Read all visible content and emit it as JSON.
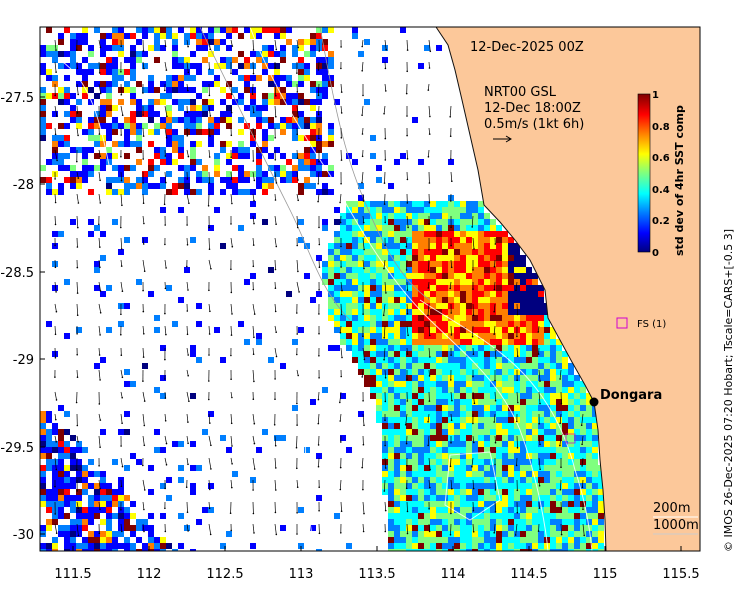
{
  "map": {
    "title": "12-Dec-2025 00Z",
    "product": "NRT00 GSL",
    "vector_time": "12-Dec 18:00Z",
    "vector_scale": "0.5m/s (1kt 6h)",
    "lon_ticks": [
      "111.5",
      "112",
      "112.5",
      "113",
      "113.5",
      "114",
      "114.5",
      "115",
      "115.5"
    ],
    "lat_ticks": [
      "-27.5",
      "-28",
      "-28.5",
      "-29",
      "-29.5",
      "-30"
    ],
    "place_label": "Dongara",
    "station_label": "FS (1)",
    "contour_labels": [
      "200m",
      "1000m"
    ],
    "credit": "© IMOS 26-Dec-2025 07:20 Hobart; Tscale=CARS+[-0.5 3]",
    "colors": {
      "land": "#fcc89a",
      "coast_edge": "#111111",
      "station_marker": "#d000d0"
    }
  },
  "colorbar": {
    "label": "std dev of 4hr SST comp",
    "ticks": [
      "1",
      "0.8",
      "0.6",
      "0.4",
      "0.2",
      "0"
    ],
    "colormap": [
      "#00007f",
      "#0000ff",
      "#007fff",
      "#00ffff",
      "#7fff7f",
      "#ffff00",
      "#ff7f00",
      "#ff0000",
      "#7f0000"
    ]
  }
}
